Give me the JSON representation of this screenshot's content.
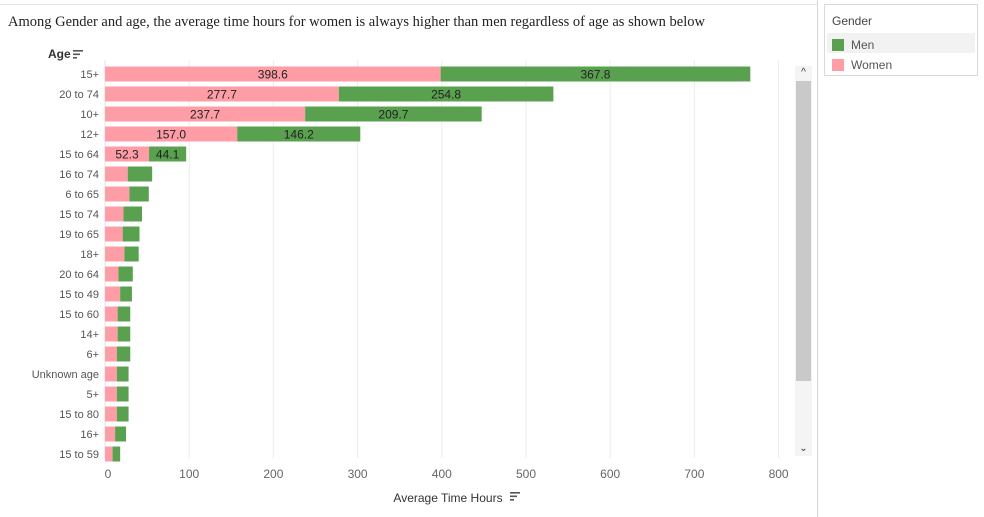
{
  "title": "Among Gender and age, the average time hours for women is always higher than men regardless of age as shown below",
  "legend": {
    "title": "Gender",
    "items": [
      {
        "label": "Men",
        "color": "#59A14F"
      },
      {
        "label": "Women",
        "color": "#FF9DA7"
      }
    ]
  },
  "chart_data": {
    "type": "bar",
    "orientation": "horizontal",
    "stacked": true,
    "y_header": "Age",
    "xlabel": "Average Time Hours",
    "xlim": [
      0,
      800
    ],
    "xticks": [
      0,
      100,
      200,
      300,
      400,
      500,
      600,
      700,
      800
    ],
    "grid": "vertical",
    "categories": [
      "15+",
      "20 to 74",
      "10+",
      "12+",
      "15 to 64",
      "16 to 74",
      "6 to 65",
      "15 to 74",
      "19 to 65",
      "18+",
      "20 to 64",
      "15 to 49",
      "15 to 60",
      "14+",
      "6+",
      "Unknown age",
      "5+",
      "15 to 80",
      "16+",
      "15 to 59"
    ],
    "series": [
      {
        "name": "Women",
        "color": "#FF9DA7",
        "values": [
          398.6,
          277.7,
          237.7,
          157.0,
          52.3,
          27,
          29,
          22,
          21,
          23,
          16,
          18,
          15,
          15,
          14,
          14,
          14,
          14,
          12,
          9
        ],
        "labels": [
          "398.6",
          "277.7",
          "237.7",
          "157.0",
          "52.3",
          "",
          "",
          "",
          "",
          "",
          "",
          "",
          "",
          "",
          "",
          "",
          "",
          "",
          "",
          ""
        ]
      },
      {
        "name": "Men",
        "color": "#59A14F",
        "values": [
          367.8,
          254.8,
          209.7,
          146.2,
          44.1,
          29,
          23,
          22,
          20,
          17,
          17,
          14,
          15,
          15,
          16,
          14,
          14,
          14,
          13,
          9
        ],
        "labels": [
          "367.8",
          "254.8",
          "209.7",
          "146.2",
          "44.1",
          "",
          "",
          "",
          "",
          "",
          "",
          "",
          "",
          "",
          "",
          "",
          "",
          "",
          "",
          ""
        ]
      }
    ]
  }
}
